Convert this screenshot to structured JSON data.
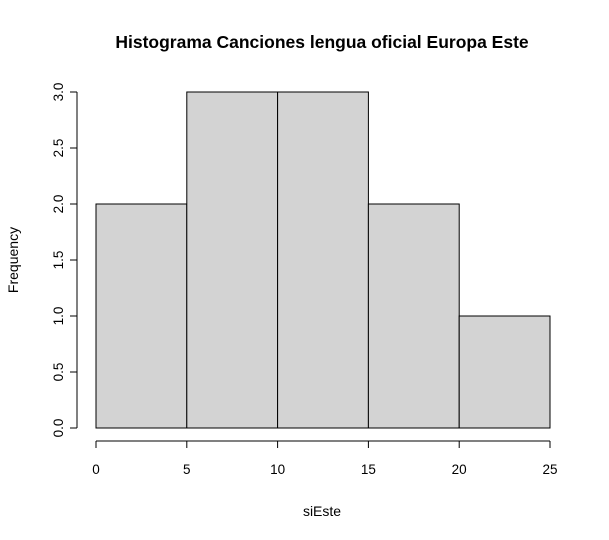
{
  "chart_data": {
    "type": "bar",
    "title": "Histograma Canciones lengua oficial Europa Este",
    "xlabel": "siEste",
    "ylabel": "Frequency",
    "bins": [
      [
        0,
        5
      ],
      [
        5,
        10
      ],
      [
        10,
        15
      ],
      [
        15,
        20
      ],
      [
        20,
        25
      ]
    ],
    "values": [
      2,
      3,
      3,
      2,
      1
    ],
    "xlim": [
      0,
      25
    ],
    "ylim": [
      0,
      3
    ],
    "x_ticks": [
      "0",
      "5",
      "10",
      "15",
      "20",
      "25"
    ],
    "y_ticks": [
      "0.0",
      "0.5",
      "1.0",
      "1.5",
      "2.0",
      "2.5",
      "3.0"
    ],
    "bar_color": "#d3d3d3",
    "grid": false
  }
}
